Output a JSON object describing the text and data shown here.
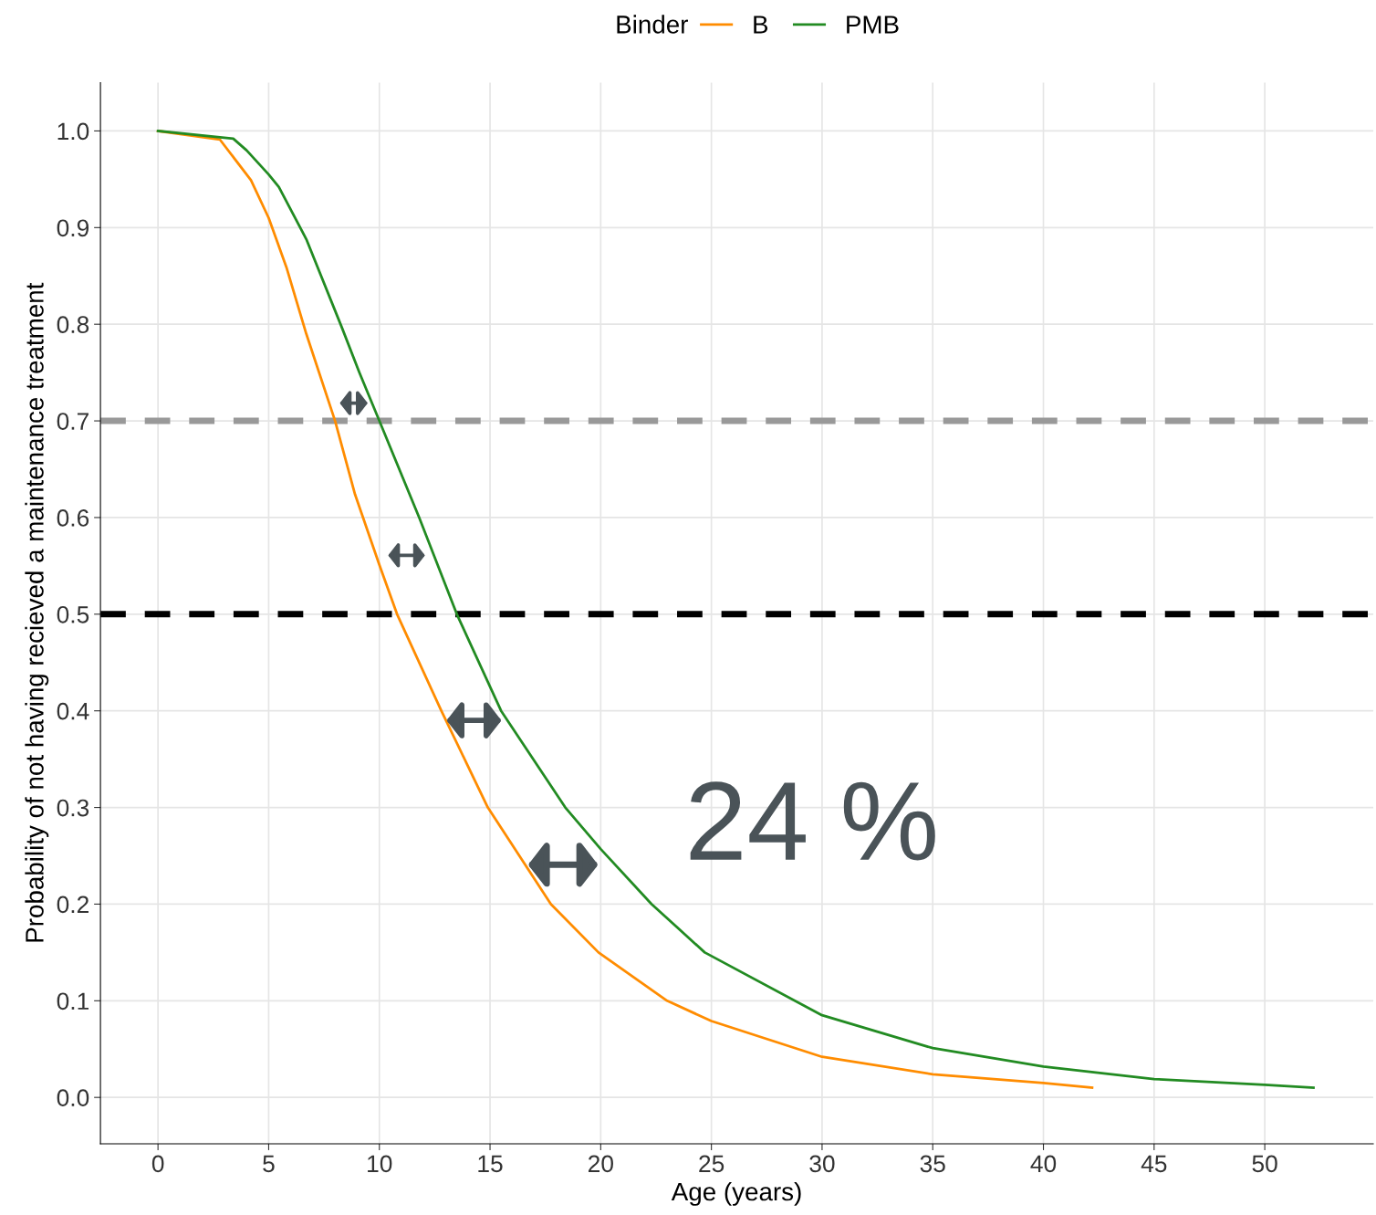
{
  "chart_data": {
    "type": "line",
    "xlabel": "Age (years)",
    "ylabel": "Probability of not having recieved a maintenance treatment",
    "legend_title": "Binder",
    "legend": "top",
    "grid": true,
    "line_style": "solid",
    "marker": "none",
    "xlim": [
      -2.6,
      54.9
    ],
    "ylim": [
      -0.048,
      1.05
    ],
    "xticks": [
      0,
      5,
      10,
      15,
      20,
      25,
      30,
      35,
      40,
      45,
      50
    ],
    "yticks": [
      {
        "value": 0,
        "label": "0.0"
      },
      {
        "value": 0.1,
        "label": "0.1"
      },
      {
        "value": 0.2,
        "label": "0.2"
      },
      {
        "value": 0.3,
        "label": "0.3"
      },
      {
        "value": 0.4,
        "label": "0.4"
      },
      {
        "value": 0.5,
        "label": "0.5"
      },
      {
        "value": 0.6,
        "label": "0.6"
      },
      {
        "value": 0.7,
        "label": "0.7"
      },
      {
        "value": 0.8,
        "label": "0.8"
      },
      {
        "value": 0.9,
        "label": "0.9"
      },
      {
        "value": 1.0,
        "label": "1.0"
      }
    ],
    "series": [
      {
        "name": "B",
        "color": "#ff8c00",
        "x": [
          0,
          2.8,
          4.2,
          5,
          5.8,
          6.7,
          8,
          8.9,
          10,
          10.8,
          12.8,
          14.9,
          17.75,
          19.9,
          23.0,
          25,
          30,
          35,
          40,
          42.2
        ],
        "values": [
          1.0,
          0.991,
          0.949,
          0.91,
          0.859,
          0.79,
          0.7,
          0.624,
          0.551,
          0.5,
          0.4,
          0.3,
          0.2,
          0.15,
          0.1,
          0.079,
          0.042,
          0.024,
          0.015,
          0.01
        ]
      },
      {
        "name": "PMB",
        "color": "#228b22",
        "x": [
          0,
          3.4,
          4,
          5,
          5.46,
          6.7,
          8.3,
          9.1,
          10.0,
          11.8,
          13.5,
          15.5,
          18.4,
          20,
          22.3,
          24.7,
          30,
          35,
          40,
          45,
          50,
          52.2
        ],
        "values": [
          1.0,
          0.992,
          0.98,
          0.955,
          0.942,
          0.888,
          0.797,
          0.75,
          0.7,
          0.6,
          0.5,
          0.4,
          0.3,
          0.257,
          0.2,
          0.15,
          0.085,
          0.051,
          0.032,
          0.019,
          0.013,
          0.01
        ]
      }
    ],
    "ref_lines": [
      {
        "axis": "y",
        "value": 0.7,
        "color": "#999999",
        "line_style": "dashed"
      },
      {
        "axis": "y",
        "value": 0.5,
        "color": "#000000",
        "line_style": "dashed"
      }
    ],
    "annotations": [
      "24 %"
    ]
  }
}
